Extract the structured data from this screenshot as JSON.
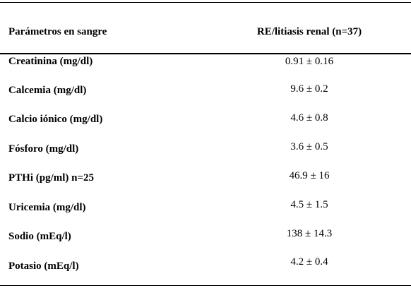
{
  "table": {
    "headers": {
      "param": "Parámetros en sangre",
      "value": "RE/litiasis renal (n=37)"
    },
    "rows": [
      {
        "param": "Creatinina (mg/dl)",
        "value": "0.91 ± 0.16"
      },
      {
        "param": "Calcemia (mg/dl)",
        "value": "9.6 ± 0.2"
      },
      {
        "param": "Calcio iónico (mg/dl)",
        "value": "4.6 ± 0.8"
      },
      {
        "param": "Fósforo (mg/dl)",
        "value": "3.6 ± 0.5"
      },
      {
        "param": "PTHi (pg/ml) n=25",
        "value": "46.9 ± 16"
      },
      {
        "param": "Uricemia (mg/dl)",
        "value": "4.5 ± 1.5"
      },
      {
        "param": "Sodio (mEq/l)",
        "value": "138 ± 14.3"
      },
      {
        "param": "Potasio (mEq/l)",
        "value": "4.2 ± 0.4"
      }
    ]
  }
}
